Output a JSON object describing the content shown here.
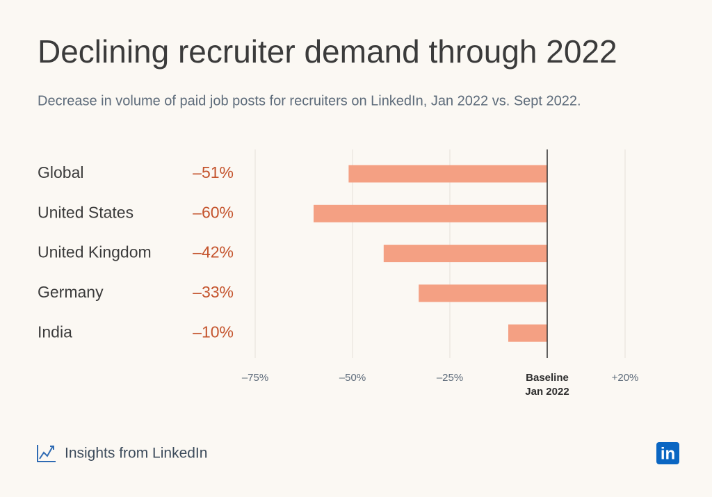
{
  "chart_data": {
    "type": "bar",
    "orientation": "horizontal",
    "title": "Declining recruiter demand through 2022",
    "subtitle": "Decrease in volume of paid job posts for recruiters on LinkedIn, Jan 2022 vs. Sept 2022.",
    "categories": [
      "Global",
      "United States",
      "United Kingdom",
      "Germany",
      "India"
    ],
    "values": [
      -51,
      -60,
      -42,
      -33,
      -10
    ],
    "value_labels": [
      "–51%",
      "–60%",
      "–42%",
      "–33%",
      "–10%"
    ],
    "color": "#f4a083",
    "value_label_color": "#c4532c",
    "xlim": [
      -75,
      25
    ],
    "xticks": [
      {
        "value": -75,
        "label": "–75%"
      },
      {
        "value": -50,
        "label": "–50%"
      },
      {
        "value": -25,
        "label": "–25%"
      },
      {
        "value": 0,
        "label": "Baseline"
      },
      {
        "value": 20,
        "label": "+20%"
      }
    ],
    "baseline_note": "Jan 2022",
    "grid": true
  },
  "footer": {
    "source": "Insights from LinkedIn",
    "logo": "in"
  }
}
